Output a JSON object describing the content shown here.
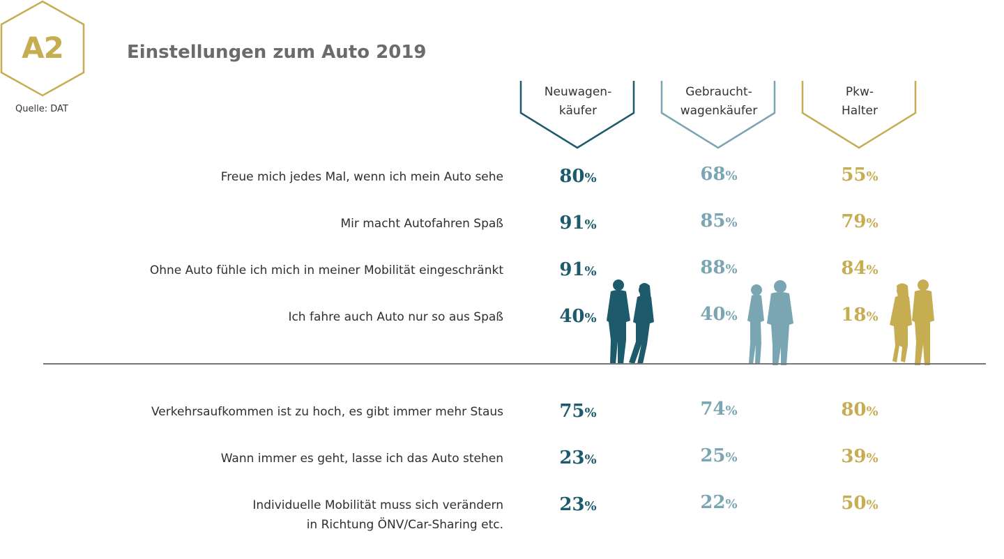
{
  "badge": {
    "label": "A2"
  },
  "source": "Quelle: DAT",
  "title": "Einstellungen zum Auto 2019",
  "colors": {
    "Neuwagenkäufer": "#1c5a6c",
    "Gebrauchtwagenkäufer": "#7aa5b2",
    "Pkw-Halter": "#c6ad52",
    "badge": "#c6ad52"
  },
  "icons": [
    "couple-silhouette-icon-dark-teal",
    "couple-silhouette-icon-light-teal",
    "couple-silhouette-icon-gold"
  ],
  "chart_data": {
    "type": "table",
    "title": "Einstellungen zum Auto 2019",
    "columns": [
      {
        "line1": "Neuwagen-",
        "line2": "käufer"
      },
      {
        "line1": "Gebraucht-",
        "line2": "wagenkäufer"
      },
      {
        "line1": "Pkw-",
        "line2": "Halter"
      }
    ],
    "unit": "%",
    "rows": [
      {
        "label": "Freue mich jedes Mal, wenn ich mein Auto sehe",
        "label2": "",
        "values": [
          80,
          68,
          55
        ]
      },
      {
        "label": "Mir macht Autofahren Spaß",
        "label2": "",
        "values": [
          91,
          85,
          79
        ]
      },
      {
        "label": "Ohne Auto fühle ich mich in meiner Mobilität eingeschränkt",
        "label2": "",
        "values": [
          91,
          88,
          84
        ]
      },
      {
        "label": "Ich fahre auch Auto nur so aus Spaß",
        "label2": "",
        "values": [
          40,
          40,
          18
        ]
      },
      {
        "label": "Verkehrsaufkommen ist zu hoch, es gibt immer mehr Staus",
        "label2": "",
        "values": [
          75,
          74,
          80
        ]
      },
      {
        "label": "Wann immer es geht, lasse ich das Auto stehen",
        "label2": "",
        "values": [
          23,
          25,
          39
        ]
      },
      {
        "label": "Individuelle Mobilität muss sich verändern",
        "label2": "in Richtung ÖNV/Car-Sharing etc.",
        "values": [
          23,
          22,
          50
        ]
      }
    ]
  }
}
